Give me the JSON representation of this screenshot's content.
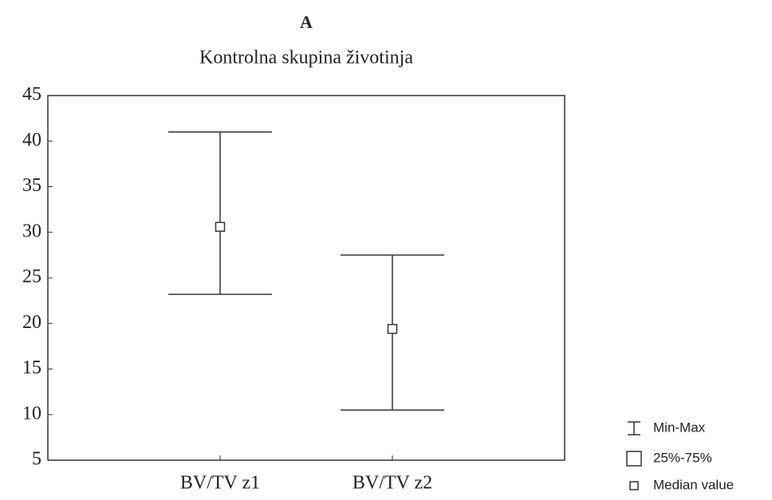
{
  "chart_data": {
    "type": "boxplot",
    "title": "A",
    "subtitle": "Kontrolna skupina životinja",
    "categories": [
      "BV/TV z1",
      "BV/TV z2"
    ],
    "min": [
      23.2,
      10.5
    ],
    "max": [
      41,
      27.5
    ],
    "median": [
      30.6,
      19.4
    ],
    "ylim": [
      5,
      45
    ],
    "yticks": [
      5,
      10,
      15,
      20,
      25,
      30,
      35,
      40,
      45
    ],
    "legend": [
      "Min-Max",
      "25%-75%",
      "Median value"
    ],
    "color": "#333333"
  }
}
